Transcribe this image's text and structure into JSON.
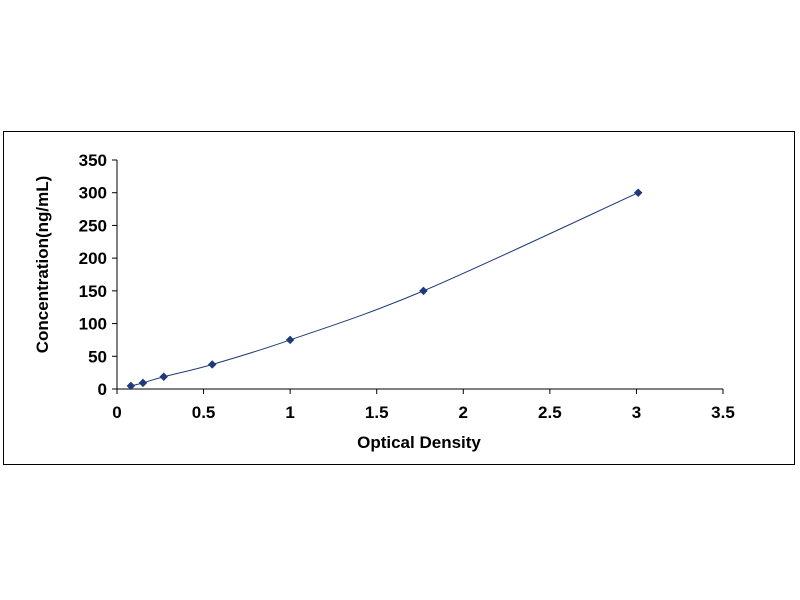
{
  "chart_data": {
    "type": "scatter",
    "title": "",
    "xlabel": "Optical Density",
    "ylabel": "Concentration(ng/mL)",
    "xlim": [
      0,
      3.5
    ],
    "ylim": [
      0,
      350
    ],
    "x_ticks": [
      "0",
      "0.5",
      "1",
      "1.5",
      "2",
      "2.5",
      "3",
      "3.5"
    ],
    "y_ticks": [
      "0",
      "50",
      "100",
      "150",
      "200",
      "250",
      "300",
      "350"
    ],
    "grid": false,
    "legend": "none",
    "trendline": "smooth curve through points",
    "series": [
      {
        "color": "#1f3a7a",
        "marker": "diamond",
        "x": [
          0.08,
          0.15,
          0.27,
          0.55,
          1.0,
          1.77,
          3.01
        ],
        "y": [
          4.69,
          9.38,
          18.75,
          37.5,
          75,
          150,
          300
        ]
      }
    ]
  }
}
